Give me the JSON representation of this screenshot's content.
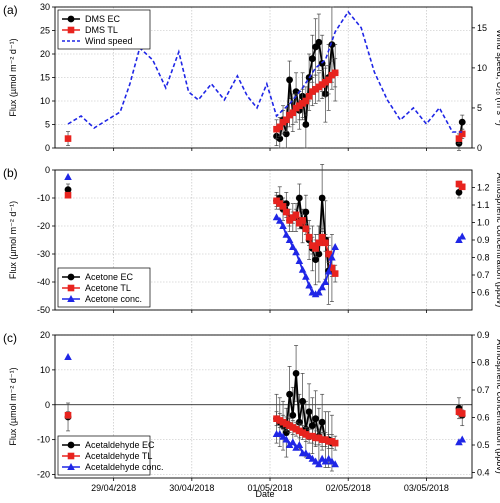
{
  "figure": {
    "xlabel": "Date"
  },
  "x_ticks": [
    "29/04/2018",
    "30/04/2018",
    "01/05/2018",
    "02/05/2018",
    "03/05/2018"
  ],
  "chart_data": [
    {
      "type": "scatter",
      "panel_label": "(a)",
      "ylabel": "Flux (µmol m⁻² d⁻¹)",
      "ylabel2": "Wind speed, U₁₀ (m s⁻¹)",
      "ylim": [
        0,
        30
      ],
      "yticks": [
        0,
        5,
        10,
        15,
        20,
        25,
        30
      ],
      "ylim2": [
        0,
        17.6
      ],
      "yticks2": [
        0,
        5,
        10,
        15
      ],
      "legend": "top-left",
      "series": [
        {
          "name": "DMS EC",
          "color": "#000000",
          "marker": "circle",
          "x": [
            "2018-05-01 02:00",
            "2018-05-01 03:00",
            "2018-05-01 04:00",
            "2018-05-01 05:00",
            "2018-05-01 06:00",
            "2018-05-01 07:00",
            "2018-05-01 08:00",
            "2018-05-01 09:00",
            "2018-05-01 10:00",
            "2018-05-01 11:00",
            "2018-05-01 12:00",
            "2018-05-01 13:00",
            "2018-05-01 14:00",
            "2018-05-01 15:00",
            "2018-05-01 16:00",
            "2018-05-01 17:00",
            "2018-05-01 18:00",
            "2018-05-01 19:00",
            "2018-05-01 20:00",
            "2018-05-03 10:00",
            "2018-05-03 11:00"
          ],
          "y": [
            2.5,
            2,
            6,
            3,
            14.5,
            7.5,
            12,
            8,
            11,
            5,
            15,
            19,
            21.5,
            22.5,
            18,
            11.5,
            15,
            22,
            16,
            1,
            5.5
          ],
          "err": [
            2,
            2,
            3,
            3,
            4,
            4,
            4,
            4,
            5,
            5,
            5,
            5,
            6,
            6,
            6,
            6,
            7,
            8,
            6,
            1.5,
            1.5
          ]
        },
        {
          "name": "DMS TL",
          "color": "#e8231e",
          "marker": "square",
          "x": [
            "2018-04-28 10:00",
            "2018-05-01 02:00",
            "2018-05-01 03:00",
            "2018-05-01 04:00",
            "2018-05-01 05:00",
            "2018-05-01 06:00",
            "2018-05-01 07:00",
            "2018-05-01 08:00",
            "2018-05-01 09:00",
            "2018-05-01 10:00",
            "2018-05-01 11:00",
            "2018-05-01 12:00",
            "2018-05-01 13:00",
            "2018-05-01 14:00",
            "2018-05-01 15:00",
            "2018-05-01 16:00",
            "2018-05-01 17:00",
            "2018-05-01 18:00",
            "2018-05-01 19:00",
            "2018-05-01 20:00",
            "2018-05-03 10:00",
            "2018-05-03 11:00"
          ],
          "y": [
            2,
            4,
            4.5,
            5.5,
            6,
            7,
            7.5,
            8.5,
            9,
            9.5,
            10,
            11,
            12,
            12.5,
            13,
            13.5,
            14,
            14.5,
            15.5,
            16,
            2,
            3
          ],
          "err": [
            1.5,
            2,
            2,
            2.5,
            2.5,
            2.5,
            2.5,
            3,
            3,
            3,
            3,
            3,
            3,
            3,
            3,
            3,
            3,
            3,
            3,
            3,
            1,
            1
          ]
        },
        {
          "name": "Wind speed",
          "color": "#1f26e6",
          "style": "dashed",
          "axis": "right",
          "x": [
            "2018-04-28 10:00",
            "2018-04-28 14:00",
            "2018-04-28 18:00",
            "2018-04-28 22:00",
            "2018-04-29 02:00",
            "2018-04-29 05:00",
            "2018-04-29 08:00",
            "2018-04-29 12:00",
            "2018-04-29 16:00",
            "2018-04-29 20:00",
            "2018-04-29 23:00",
            "2018-04-30 02:00",
            "2018-04-30 06:00",
            "2018-04-30 10:00",
            "2018-04-30 14:00",
            "2018-04-30 17:00",
            "2018-04-30 20:00",
            "2018-04-30 23:00",
            "2018-05-01 02:00",
            "2018-05-01 06:00",
            "2018-05-01 10:00",
            "2018-05-01 14:00",
            "2018-05-01 17:00",
            "2018-05-01 20:00",
            "2018-05-02 00:00",
            "2018-05-02 04:00",
            "2018-05-02 08:00",
            "2018-05-02 12:00",
            "2018-05-02 16:00",
            "2018-05-02 20:00",
            "2018-05-03 00:00",
            "2018-05-03 04:00",
            "2018-05-03 08:00",
            "2018-05-03 11:00"
          ],
          "y": [
            3,
            4,
            2.5,
            3.5,
            4.5,
            8,
            12.5,
            11,
            7.5,
            12,
            7,
            6,
            8,
            6,
            9,
            6.5,
            5,
            8,
            4,
            5.5,
            7.5,
            10,
            11,
            14.5,
            17,
            15,
            9.5,
            6,
            3.5,
            5,
            3,
            5,
            2,
            2
          ]
        }
      ]
    },
    {
      "type": "scatter",
      "panel_label": "(b)",
      "ylabel": "Flux (µmol m⁻² d⁻¹)",
      "ylabel2": "Atmospheric concentration (ppbv)",
      "ylim": [
        -50,
        0
      ],
      "yticks": [
        -50,
        -40,
        -30,
        -20,
        -10,
        0
      ],
      "ylim2": [
        0.5,
        1.3
      ],
      "yticks2": [
        0.6,
        0.7,
        0.8,
        0.9,
        1.0,
        1.1,
        1.2
      ],
      "legend": "bottom-left",
      "series": [
        {
          "name": "Acetone EC",
          "color": "#000000",
          "marker": "circle",
          "x": [
            "2018-04-28 10:00",
            "2018-05-01 02:00",
            "2018-05-01 03:00",
            "2018-05-01 04:00",
            "2018-05-01 05:00",
            "2018-05-01 06:00",
            "2018-05-01 07:00",
            "2018-05-01 08:00",
            "2018-05-01 09:00",
            "2018-05-01 10:00",
            "2018-05-01 11:00",
            "2018-05-01 12:00",
            "2018-05-01 13:00",
            "2018-05-01 14:00",
            "2018-05-01 15:00",
            "2018-05-01 16:00",
            "2018-05-01 17:00",
            "2018-05-01 18:00",
            "2018-05-01 19:00",
            "2018-05-03 10:00"
          ],
          "y": [
            -7,
            -11,
            -10,
            -14,
            -12,
            -18,
            -17,
            -17,
            -10,
            -20,
            -15,
            -25,
            -28,
            -32,
            -30,
            -10,
            -25,
            -36,
            -35,
            -8
          ],
          "err": [
            2,
            3,
            4,
            4,
            4,
            4,
            5,
            5,
            5,
            6,
            6,
            7,
            8,
            9,
            10,
            12,
            14,
            12,
            12,
            2
          ]
        },
        {
          "name": "Acetone TL",
          "color": "#e8231e",
          "marker": "square",
          "x": [
            "2018-04-28 10:00",
            "2018-05-01 02:00",
            "2018-05-01 03:00",
            "2018-05-01 04:00",
            "2018-05-01 05:00",
            "2018-05-01 06:00",
            "2018-05-01 07:00",
            "2018-05-01 08:00",
            "2018-05-01 09:00",
            "2018-05-01 10:00",
            "2018-05-01 11:00",
            "2018-05-01 12:00",
            "2018-05-01 13:00",
            "2018-05-01 14:00",
            "2018-05-01 15:00",
            "2018-05-01 16:00",
            "2018-05-01 17:00",
            "2018-05-01 18:00",
            "2018-05-01 19:00",
            "2018-05-01 20:00",
            "2018-05-03 10:00",
            "2018-05-03 11:00"
          ],
          "y": [
            -9,
            -11,
            -12,
            -13,
            -15,
            -18,
            -17,
            -16,
            -19,
            -18,
            -21,
            -24,
            -27,
            -28,
            -26,
            -24,
            -26,
            -30,
            -35,
            -37,
            -5,
            -6
          ],
          "err": [
            1,
            2,
            2,
            2,
            2,
            2,
            2,
            2,
            2,
            2,
            2,
            3,
            3,
            3,
            3,
            3,
            3,
            3,
            3,
            3,
            1,
            1
          ]
        },
        {
          "name": "Acetone conc.",
          "color": "#1f26e6",
          "marker": "triangle",
          "axis": "right",
          "x": [
            "2018-04-28 10:00",
            "2018-05-01 02:00",
            "2018-05-01 03:00",
            "2018-05-01 04:00",
            "2018-05-01 05:00",
            "2018-05-01 06:00",
            "2018-05-01 07:00",
            "2018-05-01 08:00",
            "2018-05-01 09:00",
            "2018-05-01 10:00",
            "2018-05-01 11:00",
            "2018-05-01 12:00",
            "2018-05-01 13:00",
            "2018-05-01 14:00",
            "2018-05-01 15:00",
            "2018-05-01 16:00",
            "2018-05-01 17:00",
            "2018-05-01 18:00",
            "2018-05-01 19:00",
            "2018-05-01 20:00",
            "2018-05-03 10:00",
            "2018-05-03 11:00"
          ],
          "y": [
            1.26,
            1.03,
            1.01,
            0.98,
            0.93,
            0.9,
            0.86,
            0.83,
            0.78,
            0.73,
            0.69,
            0.64,
            0.6,
            0.59,
            0.6,
            0.63,
            0.66,
            0.72,
            0.8,
            0.86,
            0.9,
            0.92
          ]
        }
      ]
    },
    {
      "type": "scatter",
      "panel_label": "(c)",
      "ylabel": "Flux (µmol m⁻² d⁻¹)",
      "ylabel2": "Atmospheric concentration (ppbv)",
      "ylim": [
        -21,
        20
      ],
      "yticks": [
        -20,
        -10,
        0,
        10,
        20
      ],
      "ylim2": [
        0.38,
        0.9
      ],
      "yticks2": [
        0.4,
        0.5,
        0.6,
        0.7,
        0.8,
        0.9
      ],
      "legend": "bottom-left",
      "zero_line": true,
      "series": [
        {
          "name": "Acetaldehyde EC",
          "color": "#000000",
          "marker": "circle",
          "x": [
            "2018-04-28 10:00",
            "2018-05-01 02:00",
            "2018-05-01 03:00",
            "2018-05-01 04:00",
            "2018-05-01 05:00",
            "2018-05-01 06:00",
            "2018-05-01 07:00",
            "2018-05-01 08:00",
            "2018-05-01 09:00",
            "2018-05-01 10:00",
            "2018-05-01 11:00",
            "2018-05-01 12:00",
            "2018-05-01 13:00",
            "2018-05-01 14:00",
            "2018-05-01 15:00",
            "2018-05-01 16:00",
            "2018-05-01 17:00",
            "2018-05-01 18:00",
            "2018-05-01 19:00",
            "2018-05-03 10:00",
            "2018-05-03 11:00"
          ],
          "y": [
            -3.5,
            -4,
            -5,
            -6,
            -8,
            3,
            -3,
            9,
            -5,
            1,
            -7,
            -2,
            -6,
            -4,
            -9,
            -5,
            -10,
            -10,
            -11,
            -1,
            -3
          ],
          "err": [
            4,
            7,
            7,
            7,
            7,
            8,
            8,
            8,
            8,
            8,
            8,
            8,
            8,
            8,
            8,
            8,
            8,
            8,
            8,
            3,
            3
          ]
        },
        {
          "name": "Acetaldehyde TL",
          "color": "#e8231e",
          "marker": "square",
          "x": [
            "2018-04-28 10:00",
            "2018-05-01 02:00",
            "2018-05-01 03:00",
            "2018-05-01 04:00",
            "2018-05-01 05:00",
            "2018-05-01 06:00",
            "2018-05-01 07:00",
            "2018-05-01 08:00",
            "2018-05-01 09:00",
            "2018-05-01 10:00",
            "2018-05-01 11:00",
            "2018-05-01 12:00",
            "2018-05-01 13:00",
            "2018-05-01 14:00",
            "2018-05-01 15:00",
            "2018-05-01 16:00",
            "2018-05-01 17:00",
            "2018-05-01 18:00",
            "2018-05-01 19:00",
            "2018-05-01 20:00",
            "2018-05-03 10:00",
            "2018-05-03 11:00"
          ],
          "y": [
            -3,
            -4,
            -4.5,
            -5,
            -5.5,
            -6,
            -6.5,
            -7,
            -7.5,
            -8,
            -8.5,
            -9,
            -9,
            -9.5,
            -9.5,
            -10,
            -10,
            -10.5,
            -10.5,
            -11,
            -2,
            -2.5
          ],
          "err": [
            1,
            2,
            2,
            2,
            2,
            2,
            2,
            2,
            2,
            2,
            2,
            2,
            2,
            2,
            2,
            2,
            2,
            2,
            2,
            2,
            1,
            1
          ]
        },
        {
          "name": "Acetaldehyde conc.",
          "color": "#1f26e6",
          "marker": "triangle",
          "axis": "right",
          "x": [
            "2018-04-28 10:00",
            "2018-05-01 02:00",
            "2018-05-01 03:00",
            "2018-05-01 04:00",
            "2018-05-01 05:00",
            "2018-05-01 06:00",
            "2018-05-01 07:00",
            "2018-05-01 08:00",
            "2018-05-01 09:00",
            "2018-05-01 10:00",
            "2018-05-01 11:00",
            "2018-05-01 12:00",
            "2018-05-01 13:00",
            "2018-05-01 14:00",
            "2018-05-01 15:00",
            "2018-05-01 16:00",
            "2018-05-01 17:00",
            "2018-05-01 18:00",
            "2018-05-01 19:00",
            "2018-05-01 20:00",
            "2018-05-03 10:00",
            "2018-05-03 11:00"
          ],
          "y": [
            0.82,
            0.54,
            0.54,
            0.53,
            0.52,
            0.5,
            0.51,
            0.49,
            0.5,
            0.47,
            0.47,
            0.46,
            0.45,
            0.44,
            0.43,
            0.45,
            0.44,
            0.45,
            0.44,
            0.43,
            0.51,
            0.52
          ]
        }
      ]
    }
  ]
}
